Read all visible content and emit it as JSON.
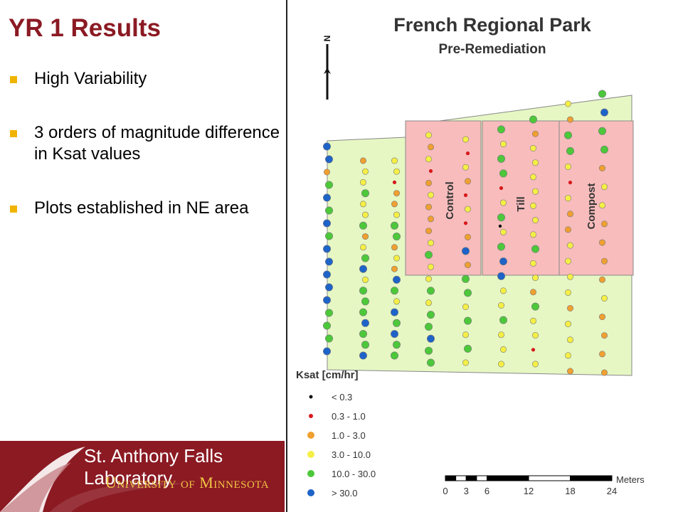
{
  "slide": {
    "title": "YR 1 Results",
    "bullets": [
      "High Variability",
      "3 orders of magnitude difference in Ksat values",
      "Plots established in NE area"
    ]
  },
  "banner": {
    "lab": "St. Anthony Falls Laboratory",
    "university": "University of Minnesota"
  },
  "map": {
    "title": "French Regional Park",
    "subtitle": "Pre-Remediation",
    "north_label": "N",
    "plots": [
      "Control",
      "Till",
      "Compost"
    ],
    "legend": {
      "title": "Ksat [cm/hr]",
      "classes": [
        {
          "label": "< 0.3",
          "color": "#111111"
        },
        {
          "label": "0.3 - 1.0",
          "color": "#d7191c"
        },
        {
          "label": "1.0 - 3.0",
          "color": "#f0a030"
        },
        {
          "label": "3.0 - 10.0",
          "color": "#f5ef45"
        },
        {
          "label": "10.0 - 30.0",
          "color": "#4cc83a"
        },
        {
          "label": "> 30.0",
          "color": "#1e63c8"
        }
      ]
    },
    "scale": {
      "ticks": [
        "0",
        "3",
        "6",
        "12",
        "18",
        "24"
      ],
      "unit": "Meters"
    },
    "colors": {
      "park": "#e6f7c4",
      "plot": "#f8bcbc"
    }
  }
}
